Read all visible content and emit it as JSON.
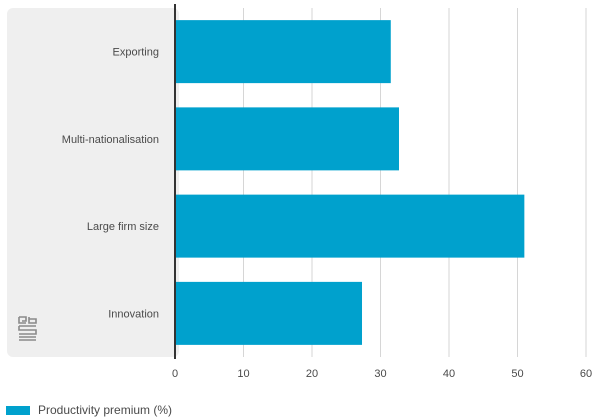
{
  "chart_data": {
    "type": "bar",
    "orientation": "horizontal",
    "categories": [
      "Exporting",
      "Multi-nationalisation",
      "Large firm size",
      "Innovation"
    ],
    "series": [
      {
        "name": "Productivity premium (%)",
        "values": [
          31.5,
          32.7,
          51.0,
          27.3
        ]
      }
    ],
    "xlim": [
      0,
      60
    ],
    "xticks": [
      "0",
      "10",
      "20",
      "30",
      "40",
      "50",
      "60"
    ],
    "grid": true,
    "legend_position": "bottom-left",
    "colors": {
      "bar": "#00a1cd",
      "panel": "#efefef",
      "grid": "#d6d6d6",
      "axis": "#333333"
    }
  },
  "branding": {
    "logo_icon": "cbs-logo-icon"
  }
}
